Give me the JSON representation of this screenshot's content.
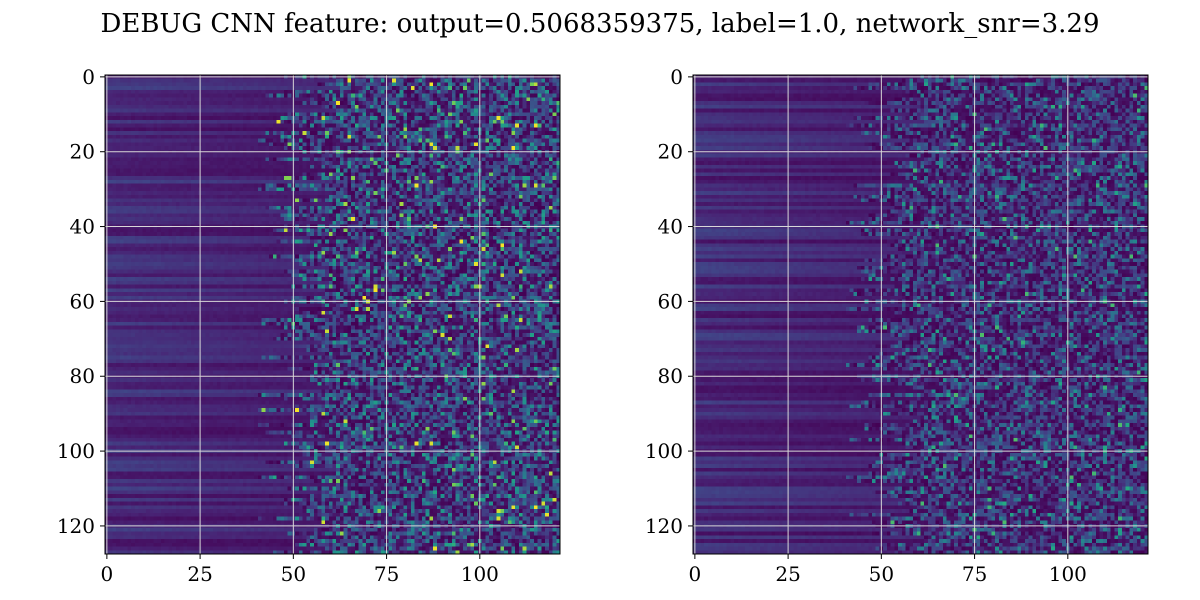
{
  "figure": {
    "title": "DEBUG CNN feature: output=0.5068359375, label=1.0, network_snr=3.29"
  },
  "chart_data": [
    {
      "type": "heatmap",
      "colormap": "viridis",
      "rows": 128,
      "cols": 122,
      "value_range": [
        0,
        1
      ],
      "x_ticks": [
        0,
        25,
        50,
        75,
        100
      ],
      "y_ticks": [
        0,
        20,
        40,
        60,
        80,
        100,
        120
      ],
      "xlim": [
        -0.5,
        121.5
      ],
      "ylim": [
        127.5,
        -0.5
      ],
      "grid": true,
      "grid_color": "#d8d8d8",
      "pattern": "rows with smooth low values on the left (x < ~45) transitioning to sparse noisy higher values on the right (x > ~65)",
      "seed": 11
    },
    {
      "type": "heatmap",
      "colormap": "viridis",
      "rows": 128,
      "cols": 122,
      "value_range": [
        0,
        1
      ],
      "x_ticks": [
        0,
        25,
        50,
        75,
        100
      ],
      "y_ticks": [
        0,
        20,
        40,
        60,
        80,
        100,
        120
      ],
      "xlim": [
        -0.5,
        121.5
      ],
      "ylim": [
        127.5,
        -0.5
      ],
      "grid": true,
      "grid_color": "#d8d8d8",
      "pattern": "rows with smooth low values on the left transitioning to sparse noisy values on the right, overall darker than the first panel",
      "seed": 29
    }
  ]
}
